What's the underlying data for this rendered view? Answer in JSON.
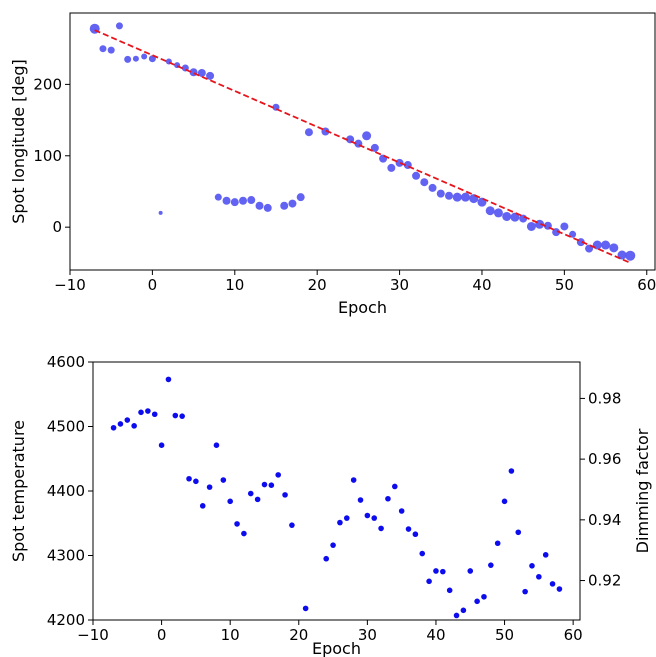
{
  "colors": {
    "top_points": "#5a5af2",
    "fit_line": "#e8141c",
    "bottom_points": "#0c0cee"
  },
  "chart_data": [
    {
      "type": "scatter",
      "xlabel": "Epoch",
      "ylabel": "Spot longitude [deg]",
      "xlim": [
        -10,
        61
      ],
      "ylim": [
        -60,
        300
      ],
      "xticks": [
        -10,
        0,
        10,
        20,
        30,
        40,
        50,
        60
      ],
      "yticks": [
        0,
        100,
        200
      ],
      "grid": false,
      "series": [
        {
          "style": "markers",
          "points": [
            {
              "x": -7,
              "y": 278,
              "s": 5
            },
            {
              "x": -6,
              "y": 250,
              "s": 3.5
            },
            {
              "x": -5,
              "y": 248,
              "s": 3.5
            },
            {
              "x": -4,
              "y": 282,
              "s": 3.5
            },
            {
              "x": -3,
              "y": 235,
              "s": 3.5
            },
            {
              "x": -2,
              "y": 236,
              "s": 3
            },
            {
              "x": -1,
              "y": 239,
              "s": 3
            },
            {
              "x": 0,
              "y": 236,
              "s": 3.5
            },
            {
              "x": 1,
              "y": 20,
              "s": 2
            },
            {
              "x": 2,
              "y": 232,
              "s": 3
            },
            {
              "x": 3,
              "y": 227,
              "s": 3
            },
            {
              "x": 4,
              "y": 223,
              "s": 3.5
            },
            {
              "x": 5,
              "y": 217,
              "s": 4
            },
            {
              "x": 6,
              "y": 216,
              "s": 4
            },
            {
              "x": 7,
              "y": 212,
              "s": 4
            },
            {
              "x": 8,
              "y": 42,
              "s": 3.5
            },
            {
              "x": 9,
              "y": 37,
              "s": 4
            },
            {
              "x": 10,
              "y": 35,
              "s": 4
            },
            {
              "x": 11,
              "y": 37,
              "s": 4
            },
            {
              "x": 12,
              "y": 38,
              "s": 4
            },
            {
              "x": 13,
              "y": 30,
              "s": 4
            },
            {
              "x": 14,
              "y": 27,
              "s": 4
            },
            {
              "x": 15,
              "y": 168,
              "s": 3.5
            },
            {
              "x": 16,
              "y": 30,
              "s": 4
            },
            {
              "x": 17,
              "y": 33,
              "s": 4
            },
            {
              "x": 18,
              "y": 42,
              "s": 4
            },
            {
              "x": 19,
              "y": 133,
              "s": 4
            },
            {
              "x": 21,
              "y": 134,
              "s": 4
            },
            {
              "x": 24,
              "y": 123,
              "s": 4
            },
            {
              "x": 25,
              "y": 117,
              "s": 4
            },
            {
              "x": 26,
              "y": 128,
              "s": 4.5
            },
            {
              "x": 27,
              "y": 111,
              "s": 4
            },
            {
              "x": 28,
              "y": 96,
              "s": 4
            },
            {
              "x": 29,
              "y": 83,
              "s": 4
            },
            {
              "x": 30,
              "y": 90,
              "s": 4
            },
            {
              "x": 31,
              "y": 87,
              "s": 4
            },
            {
              "x": 32,
              "y": 72,
              "s": 4
            },
            {
              "x": 33,
              "y": 63,
              "s": 4
            },
            {
              "x": 34,
              "y": 55,
              "s": 4
            },
            {
              "x": 35,
              "y": 47,
              "s": 4
            },
            {
              "x": 36,
              "y": 44,
              "s": 4
            },
            {
              "x": 37,
              "y": 42,
              "s": 4.5
            },
            {
              "x": 38,
              "y": 42,
              "s": 4.5
            },
            {
              "x": 39,
              "y": 40,
              "s": 4.5
            },
            {
              "x": 40,
              "y": 35,
              "s": 4.5
            },
            {
              "x": 41,
              "y": 23,
              "s": 4.5
            },
            {
              "x": 42,
              "y": 20,
              "s": 4.5
            },
            {
              "x": 43,
              "y": 15,
              "s": 4.5
            },
            {
              "x": 44,
              "y": 14,
              "s": 4.5
            },
            {
              "x": 45,
              "y": 12,
              "s": 4
            },
            {
              "x": 46,
              "y": 1,
              "s": 4.5
            },
            {
              "x": 47,
              "y": 4,
              "s": 4.5
            },
            {
              "x": 48,
              "y": 2,
              "s": 4
            },
            {
              "x": 49,
              "y": -7,
              "s": 4
            },
            {
              "x": 50,
              "y": 1,
              "s": 4
            },
            {
              "x": 51,
              "y": -10,
              "s": 3.5
            },
            {
              "x": 52,
              "y": -21,
              "s": 4
            },
            {
              "x": 53,
              "y": -30,
              "s": 4
            },
            {
              "x": 54,
              "y": -25,
              "s": 4.5
            },
            {
              "x": 55,
              "y": -25,
              "s": 4.5
            },
            {
              "x": 56,
              "y": -29,
              "s": 4.5
            },
            {
              "x": 57,
              "y": -39,
              "s": 4.5
            },
            {
              "x": 58,
              "y": -40,
              "s": 5
            }
          ]
        },
        {
          "style": "dashed-line",
          "x": [
            -7,
            58
          ],
          "y": [
            276,
            -50
          ]
        }
      ]
    },
    {
      "type": "scatter",
      "xlabel": "Epoch",
      "ylabel": "Spot temperature",
      "ylabel_right": "Dimming factor",
      "xlim": [
        -10,
        61
      ],
      "ylim": [
        4200,
        4600
      ],
      "ylim_right": [
        0.907,
        0.992
      ],
      "xticks": [
        -10,
        0,
        10,
        20,
        30,
        40,
        50,
        60
      ],
      "yticks": [
        4200,
        4300,
        4400,
        4500,
        4600
      ],
      "yticks_right": [
        "0.92",
        "0.94",
        "0.96",
        "0.98"
      ],
      "grid": false,
      "series": [
        {
          "style": "markers",
          "points": [
            {
              "x": -7,
              "y": 4498
            },
            {
              "x": -6,
              "y": 4504
            },
            {
              "x": -5,
              "y": 4510
            },
            {
              "x": -4,
              "y": 4501
            },
            {
              "x": -3,
              "y": 4522
            },
            {
              "x": -2,
              "y": 4524
            },
            {
              "x": -1,
              "y": 4519
            },
            {
              "x": 0,
              "y": 4471
            },
            {
              "x": 1,
              "y": 4573
            },
            {
              "x": 2,
              "y": 4517
            },
            {
              "x": 3,
              "y": 4516
            },
            {
              "x": 4,
              "y": 4419
            },
            {
              "x": 5,
              "y": 4415
            },
            {
              "x": 6,
              "y": 4377
            },
            {
              "x": 7,
              "y": 4406
            },
            {
              "x": 8,
              "y": 4471
            },
            {
              "x": 9,
              "y": 4417
            },
            {
              "x": 10,
              "y": 4384
            },
            {
              "x": 11,
              "y": 4349
            },
            {
              "x": 12,
              "y": 4334
            },
            {
              "x": 13,
              "y": 4396
            },
            {
              "x": 14,
              "y": 4387
            },
            {
              "x": 15,
              "y": 4410
            },
            {
              "x": 16,
              "y": 4409
            },
            {
              "x": 17,
              "y": 4425
            },
            {
              "x": 18,
              "y": 4394
            },
            {
              "x": 19,
              "y": 4347
            },
            {
              "x": 21,
              "y": 4218
            },
            {
              "x": 24,
              "y": 4295
            },
            {
              "x": 25,
              "y": 4316
            },
            {
              "x": 26,
              "y": 4351
            },
            {
              "x": 27,
              "y": 4358
            },
            {
              "x": 28,
              "y": 4417
            },
            {
              "x": 29,
              "y": 4386
            },
            {
              "x": 30,
              "y": 4362
            },
            {
              "x": 31,
              "y": 4358
            },
            {
              "x": 32,
              "y": 4342
            },
            {
              "x": 33,
              "y": 4388
            },
            {
              "x": 34,
              "y": 4407
            },
            {
              "x": 35,
              "y": 4369
            },
            {
              "x": 36,
              "y": 4341
            },
            {
              "x": 37,
              "y": 4333
            },
            {
              "x": 38,
              "y": 4303
            },
            {
              "x": 39,
              "y": 4260
            },
            {
              "x": 40,
              "y": 4276
            },
            {
              "x": 41,
              "y": 4275
            },
            {
              "x": 42,
              "y": 4246
            },
            {
              "x": 43,
              "y": 4207
            },
            {
              "x": 44,
              "y": 4215
            },
            {
              "x": 45,
              "y": 4276
            },
            {
              "x": 46,
              "y": 4229
            },
            {
              "x": 47,
              "y": 4236
            },
            {
              "x": 48,
              "y": 4285
            },
            {
              "x": 49,
              "y": 4319
            },
            {
              "x": 50,
              "y": 4384
            },
            {
              "x": 51,
              "y": 4431
            },
            {
              "x": 52,
              "y": 4336
            },
            {
              "x": 53,
              "y": 4244
            },
            {
              "x": 54,
              "y": 4284
            },
            {
              "x": 55,
              "y": 4267
            },
            {
              "x": 56,
              "y": 4301
            },
            {
              "x": 57,
              "y": 4256
            },
            {
              "x": 58,
              "y": 4248
            }
          ]
        }
      ]
    }
  ]
}
